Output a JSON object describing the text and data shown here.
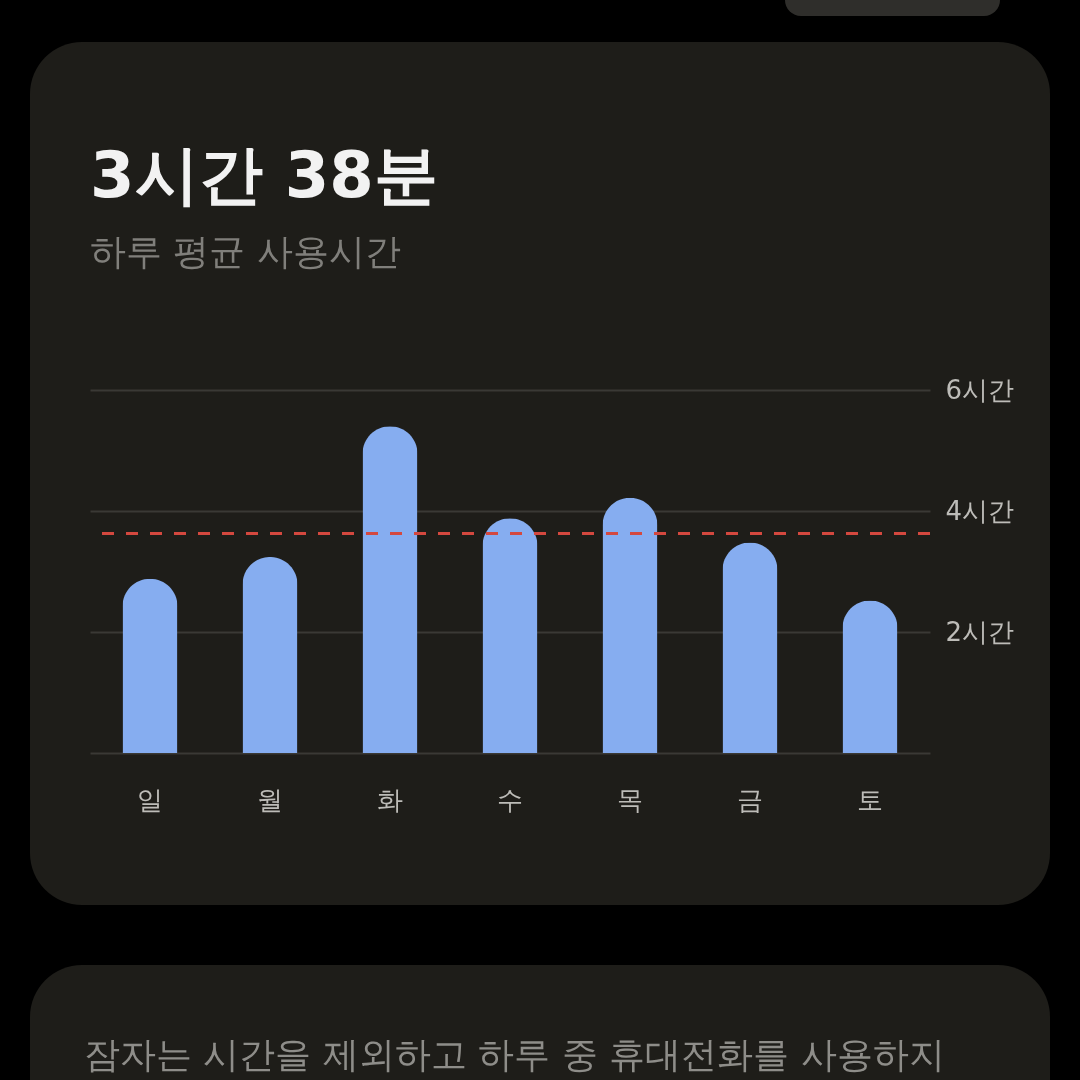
{
  "chart_data": {
    "type": "bar",
    "title": "3시간 38분",
    "subtitle": "하루 평균 사용시간",
    "categories": [
      "일",
      "월",
      "화",
      "수",
      "목",
      "금",
      "토"
    ],
    "values": [
      2.88,
      3.24,
      5.4,
      3.88,
      4.22,
      3.48,
      2.52
    ],
    "color": "#86adf0",
    "ylim": [
      0,
      6
    ],
    "yticks": [
      {
        "value": 2,
        "label": "2시간"
      },
      {
        "value": 4,
        "label": "4시간"
      },
      {
        "value": 6,
        "label": "6시간"
      }
    ],
    "grid": "y",
    "ref_lines": [
      {
        "axis": "y",
        "value": 3.63,
        "color": "#d4483f",
        "line_style": "dashed"
      }
    ],
    "annotations": [
      "잠자는 시간을 제외하고 하루 중 휴대전화를 사용하지"
    ]
  }
}
